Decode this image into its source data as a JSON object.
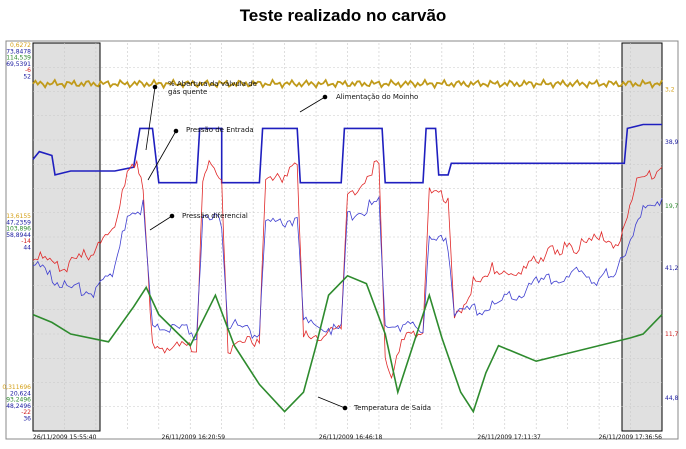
{
  "title": "Teste realizado no carvão",
  "chart_data": {
    "type": "line",
    "x_ticks": [
      "26/11/2009 15:55:40",
      "26/11/2009 16:20:59",
      "26/11/2009 16:46:18",
      "26/11/2009 17:11:37",
      "26/11/2009 17:36:56"
    ],
    "left_axis_groups": [
      {
        "labels": [
          {
            "text": "0,6272",
            "color": "#d4a017"
          },
          {
            "text": "73,8478",
            "color": "#1a1aa0"
          },
          {
            "text": "114,539",
            "color": "#2e8b2e"
          },
          {
            "text": "69,5391",
            "color": "#1a1aa0"
          },
          {
            "text": "-6",
            "color": "#d02020"
          },
          {
            "text": "52",
            "color": "#1a1aa0"
          }
        ]
      },
      {
        "labels": [
          {
            "text": "13,6155",
            "color": "#d4a017"
          },
          {
            "text": "47,2359",
            "color": "#1a1aa0"
          },
          {
            "text": "103,896",
            "color": "#2e8b2e"
          },
          {
            "text": "58,8944",
            "color": "#1a1aa0"
          },
          {
            "text": "-14",
            "color": "#d02020"
          },
          {
            "text": "44",
            "color": "#1a1aa0"
          }
        ]
      },
      {
        "labels": [
          {
            "text": "0,311696",
            "color": "#d4a017"
          },
          {
            "text": "20,624",
            "color": "#1a1aa0"
          },
          {
            "text": "93,2496",
            "color": "#2e8b2e"
          },
          {
            "text": "48,2496",
            "color": "#1a1aa0"
          },
          {
            "text": "-22",
            "color": "#d02020"
          },
          {
            "text": "36",
            "color": "#1a1aa0"
          }
        ]
      }
    ],
    "right_axis_labels": [
      {
        "text": "3,2",
        "color": "#d4a017",
        "level": 0.88
      },
      {
        "text": "38,9",
        "color": "#1a1aa0",
        "level": 0.745
      },
      {
        "text": "19,7",
        "color": "#2e8b2e",
        "level": 0.58
      },
      {
        "text": "41,2",
        "color": "#1a1aa0",
        "level": 0.42
      },
      {
        "text": "11,7",
        "color": "#d02020",
        "level": 0.25
      },
      {
        "text": "44,8",
        "color": "#1a1aa0",
        "level": 0.085
      }
    ],
    "annotations": [
      {
        "text": [
          "% Abertura da válvula de",
          "gás quente"
        ]
      },
      {
        "text": [
          "Alimentação do Moinho"
        ]
      },
      {
        "text": [
          "Pressão de Entrada"
        ]
      },
      {
        "text": [
          "Pressão diferencial"
        ]
      },
      {
        "text": [
          "Temperatura de Saída"
        ]
      }
    ],
    "series": [
      {
        "name": "% Abertura da válvula de gás quente",
        "color": "#1f1fbf",
        "points": [
          [
            0,
            0.7
          ],
          [
            0.01,
            0.72
          ],
          [
            0.03,
            0.71
          ],
          [
            0.035,
            0.66
          ],
          [
            0.06,
            0.67
          ],
          [
            0.08,
            0.67
          ],
          [
            0.13,
            0.67
          ],
          [
            0.16,
            0.68
          ],
          [
            0.17,
            0.78
          ],
          [
            0.19,
            0.78
          ],
          [
            0.2,
            0.64
          ],
          [
            0.26,
            0.64
          ],
          [
            0.265,
            0.78
          ],
          [
            0.3,
            0.78
          ],
          [
            0.3,
            0.64
          ],
          [
            0.36,
            0.64
          ],
          [
            0.365,
            0.78
          ],
          [
            0.42,
            0.78
          ],
          [
            0.425,
            0.64
          ],
          [
            0.49,
            0.64
          ],
          [
            0.495,
            0.78
          ],
          [
            0.555,
            0.78
          ],
          [
            0.56,
            0.64
          ],
          [
            0.62,
            0.64
          ],
          [
            0.625,
            0.78
          ],
          [
            0.64,
            0.78
          ],
          [
            0.645,
            0.66
          ],
          [
            0.66,
            0.66
          ],
          [
            0.665,
            0.69
          ],
          [
            0.94,
            0.69
          ],
          [
            0.945,
            0.78
          ],
          [
            0.97,
            0.79
          ],
          [
            1.0,
            0.79
          ]
        ]
      },
      {
        "name": "Alimentação do Moinho",
        "color": "#c09a1a",
        "level": 0.895
      },
      {
        "name": "Pressão de Entrada",
        "color": "#e02828",
        "points": [
          [
            0,
            0.45
          ],
          [
            0.05,
            0.42
          ],
          [
            0.1,
            0.47
          ],
          [
            0.13,
            0.52
          ],
          [
            0.15,
            0.66
          ],
          [
            0.165,
            0.68
          ],
          [
            0.175,
            0.62
          ],
          [
            0.19,
            0.22
          ],
          [
            0.26,
            0.21
          ],
          [
            0.27,
            0.66
          ],
          [
            0.28,
            0.7
          ],
          [
            0.3,
            0.65
          ],
          [
            0.31,
            0.21
          ],
          [
            0.36,
            0.24
          ],
          [
            0.37,
            0.64
          ],
          [
            0.4,
            0.65
          ],
          [
            0.42,
            0.68
          ],
          [
            0.43,
            0.24
          ],
          [
            0.49,
            0.26
          ],
          [
            0.5,
            0.62
          ],
          [
            0.52,
            0.63
          ],
          [
            0.55,
            0.7
          ],
          [
            0.56,
            0.2
          ],
          [
            0.57,
            0.14
          ],
          [
            0.59,
            0.24
          ],
          [
            0.62,
            0.24
          ],
          [
            0.63,
            0.61
          ],
          [
            0.66,
            0.6
          ],
          [
            0.67,
            0.28
          ],
          [
            0.7,
            0.38
          ],
          [
            0.73,
            0.42
          ],
          [
            0.76,
            0.41
          ],
          [
            0.8,
            0.44
          ],
          [
            0.83,
            0.47
          ],
          [
            0.86,
            0.47
          ],
          [
            0.9,
            0.5
          ],
          [
            0.93,
            0.46
          ],
          [
            0.96,
            0.64
          ],
          [
            1.0,
            0.68
          ]
        ]
      },
      {
        "name": "Pressão diferencial",
        "color": "#3f3fd0",
        "points": [
          [
            0,
            0.43
          ],
          [
            0.05,
            0.37
          ],
          [
            0.1,
            0.36
          ],
          [
            0.13,
            0.42
          ],
          [
            0.15,
            0.55
          ],
          [
            0.175,
            0.58
          ],
          [
            0.19,
            0.28
          ],
          [
            0.26,
            0.25
          ],
          [
            0.27,
            0.56
          ],
          [
            0.3,
            0.54
          ],
          [
            0.31,
            0.28
          ],
          [
            0.36,
            0.25
          ],
          [
            0.37,
            0.53
          ],
          [
            0.42,
            0.55
          ],
          [
            0.43,
            0.28
          ],
          [
            0.49,
            0.26
          ],
          [
            0.5,
            0.55
          ],
          [
            0.55,
            0.59
          ],
          [
            0.56,
            0.28
          ],
          [
            0.62,
            0.26
          ],
          [
            0.63,
            0.51
          ],
          [
            0.66,
            0.48
          ],
          [
            0.67,
            0.3
          ],
          [
            0.73,
            0.32
          ],
          [
            0.8,
            0.38
          ],
          [
            0.86,
            0.41
          ],
          [
            0.9,
            0.39
          ],
          [
            0.93,
            0.42
          ],
          [
            0.97,
            0.58
          ],
          [
            1.0,
            0.6
          ]
        ]
      },
      {
        "name": "Temperatura de Saída",
        "color": "#2e8b2e",
        "points": [
          [
            0,
            0.3
          ],
          [
            0.03,
            0.28
          ],
          [
            0.06,
            0.25
          ],
          [
            0.12,
            0.23
          ],
          [
            0.16,
            0.32
          ],
          [
            0.18,
            0.37
          ],
          [
            0.2,
            0.3
          ],
          [
            0.25,
            0.22
          ],
          [
            0.29,
            0.35
          ],
          [
            0.32,
            0.22
          ],
          [
            0.36,
            0.12
          ],
          [
            0.4,
            0.05
          ],
          [
            0.43,
            0.1
          ],
          [
            0.45,
            0.22
          ],
          [
            0.47,
            0.35
          ],
          [
            0.5,
            0.4
          ],
          [
            0.53,
            0.38
          ],
          [
            0.56,
            0.25
          ],
          [
            0.58,
            0.1
          ],
          [
            0.61,
            0.25
          ],
          [
            0.63,
            0.35
          ],
          [
            0.65,
            0.24
          ],
          [
            0.68,
            0.1
          ],
          [
            0.7,
            0.05
          ],
          [
            0.72,
            0.15
          ],
          [
            0.74,
            0.22
          ],
          [
            0.77,
            0.2
          ],
          [
            0.8,
            0.18
          ],
          [
            0.85,
            0.2
          ],
          [
            0.9,
            0.22
          ],
          [
            0.95,
            0.24
          ],
          [
            0.97,
            0.25
          ],
          [
            1.0,
            0.3
          ]
        ]
      }
    ]
  }
}
